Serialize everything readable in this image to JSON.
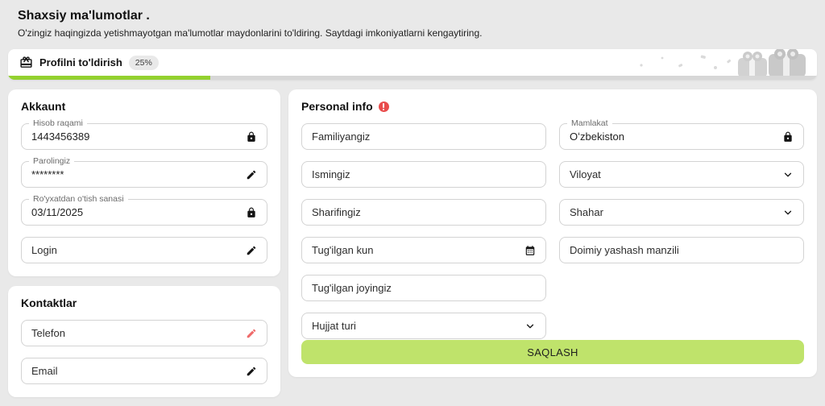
{
  "header": {
    "title": "Shaxsiy ma'lumotlar .",
    "subtitle": "O'zingiz haqingizda yetishmayotgan ma'lumotlar maydonlarini to'ldiring. Saytdagi imkoniyatlarni kengaytiring."
  },
  "progress": {
    "label": "Profilni to'ldirish",
    "percent": 25,
    "percent_label": "25%"
  },
  "colors": {
    "page_background": "#e9e9e9",
    "progress_green": "#93d12f",
    "button_green": "#bfe36b",
    "alert_red": "#e94c4c",
    "pencil_red": "#ef6a6a"
  },
  "akkaunt": {
    "title": "Akkaunt",
    "fields": [
      {
        "label": "Hisob raqami",
        "value": "1443456389",
        "icon": "lock-icon"
      },
      {
        "label": "Parolingiz",
        "value": "********",
        "icon": "pencil-icon"
      },
      {
        "label": "Ro'yxatdan o'tish sanasi",
        "value": "03/11/2025",
        "icon": "lock-icon"
      },
      {
        "placeholder": "Login",
        "icon": "pencil-icon"
      }
    ]
  },
  "kontaktlar": {
    "title": "Kontaktlar",
    "fields": [
      {
        "placeholder": "Telefon",
        "icon": "pencil-icon-red"
      },
      {
        "placeholder": "Email",
        "icon": "pencil-icon"
      }
    ]
  },
  "personal": {
    "title": "Personal info",
    "save_label": "SAQLASH",
    "left_fields": [
      {
        "placeholder": "Familiyangiz"
      },
      {
        "placeholder": "Ismingiz"
      },
      {
        "placeholder": "Sharifingiz"
      },
      {
        "placeholder": "Tug'ilgan kun",
        "icon": "calendar-icon"
      },
      {
        "placeholder": "Tug'ilgan joyingiz"
      },
      {
        "placeholder": "Hujjat turi",
        "icon": "chevron-down-icon"
      }
    ],
    "right_fields": [
      {
        "label": "Mamlakat",
        "value": "Oʻzbekiston",
        "icon": "lock-icon"
      },
      {
        "placeholder": "Viloyat",
        "icon": "chevron-down-icon"
      },
      {
        "placeholder": "Shahar",
        "icon": "chevron-down-icon"
      },
      {
        "placeholder": "Doimiy yashash manzili"
      }
    ]
  }
}
